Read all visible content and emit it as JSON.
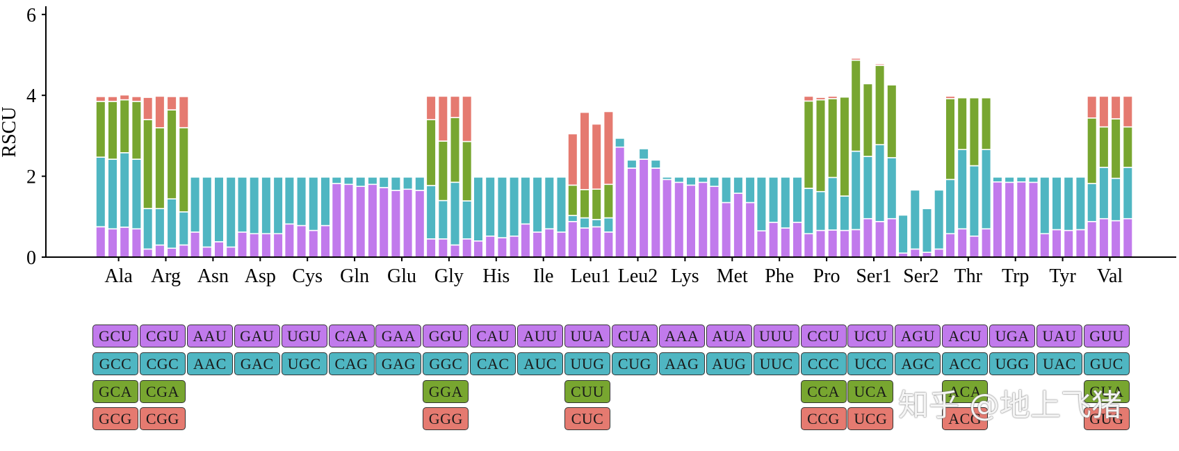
{
  "chart_data": {
    "type": "stacked-bar",
    "ylabel": "RSCU",
    "ylim": [
      0,
      6
    ],
    "yticks": [
      0,
      2,
      4,
      6
    ],
    "colors": [
      "#c17aec",
      "#4fb6c2",
      "#78a630",
      "#e57a70"
    ],
    "amino_acids": [
      "Ala",
      "Arg",
      "Asn",
      "Asp",
      "Cys",
      "Gln",
      "Glu",
      "Gly",
      "His",
      "Ile",
      "Leu1",
      "Leu2",
      "Lys",
      "Met",
      "Phe",
      "Pro",
      "Ser1",
      "Ser2",
      "Thr",
      "Trp",
      "Tyr",
      "Val"
    ],
    "bars": [
      [
        [
          0.75,
          1.72,
          1.38,
          0.12
        ],
        [
          0.7,
          1.72,
          1.43,
          0.12
        ],
        [
          0.74,
          1.84,
          1.31,
          0.12
        ],
        [
          0.7,
          1.72,
          1.43,
          0.12
        ]
      ],
      [
        [
          0.2,
          1.0,
          2.2,
          0.55
        ],
        [
          0.3,
          0.9,
          2.0,
          0.78
        ],
        [
          0.22,
          1.22,
          2.2,
          0.33
        ],
        [
          0.3,
          0.82,
          2.08,
          0.77
        ]
      ],
      [
        [
          0.62,
          1.36
        ],
        [
          0.25,
          1.73
        ],
        [
          0.38,
          1.6
        ],
        [
          0.25,
          1.73
        ]
      ],
      [
        [
          0.62,
          1.36
        ],
        [
          0.58,
          1.4
        ],
        [
          0.58,
          1.4
        ],
        [
          0.58,
          1.4
        ]
      ],
      [
        [
          0.82,
          1.16
        ],
        [
          0.78,
          1.2
        ],
        [
          0.66,
          1.32
        ],
        [
          0.78,
          1.2
        ]
      ],
      [
        [
          1.82,
          0.16
        ],
        [
          1.8,
          0.18
        ],
        [
          1.75,
          0.23
        ],
        [
          1.8,
          0.18
        ]
      ],
      [
        [
          1.72,
          0.26
        ],
        [
          1.65,
          0.33
        ],
        [
          1.68,
          0.3
        ],
        [
          1.65,
          0.33
        ]
      ],
      [
        [
          0.45,
          1.32,
          1.63,
          0.58
        ],
        [
          0.45,
          0.95,
          1.47,
          1.11
        ],
        [
          0.3,
          1.55,
          1.6,
          0.53
        ],
        [
          0.45,
          0.94,
          1.47,
          1.12
        ]
      ],
      [
        [
          0.4,
          1.58
        ],
        [
          0.52,
          1.46
        ],
        [
          0.48,
          1.5
        ],
        [
          0.52,
          1.46
        ]
      ],
      [
        [
          0.82,
          1.16
        ],
        [
          0.62,
          1.36
        ],
        [
          0.7,
          1.28
        ],
        [
          0.62,
          1.36
        ]
      ],
      [
        [
          0.88,
          0.15,
          0.75,
          1.27
        ],
        [
          0.72,
          0.25,
          0.7,
          1.91
        ],
        [
          0.75,
          0.18,
          0.75,
          1.61
        ],
        [
          0.62,
          0.35,
          0.83,
          1.8
        ]
      ],
      [
        [
          2.72,
          0.22
        ],
        [
          2.2,
          0.2
        ],
        [
          2.42,
          0.26
        ],
        [
          2.2,
          0.2
        ]
      ],
      [
        [
          1.92,
          0.06
        ],
        [
          1.85,
          0.13
        ],
        [
          1.78,
          0.2
        ],
        [
          1.85,
          0.13
        ]
      ],
      [
        [
          1.75,
          0.23
        ],
        [
          1.35,
          0.63
        ],
        [
          1.58,
          0.4
        ],
        [
          1.35,
          0.63
        ]
      ],
      [
        [
          0.65,
          1.33
        ],
        [
          0.86,
          1.12
        ],
        [
          0.72,
          1.26
        ],
        [
          0.86,
          1.12
        ]
      ],
      [
        [
          0.58,
          1.12,
          2.16,
          0.12
        ],
        [
          0.66,
          0.96,
          2.27,
          0.06
        ],
        [
          0.67,
          1.3,
          1.95,
          0.06
        ],
        [
          0.66,
          0.85,
          2.45,
          0.02
        ]
      ],
      [
        [
          0.68,
          1.94,
          2.25,
          0.05
        ],
        [
          0.95,
          1.54,
          1.8,
          0.02
        ],
        [
          0.88,
          1.9,
          1.96,
          0.04
        ],
        [
          0.95,
          1.51,
          1.8,
          0.02
        ]
      ],
      [
        [
          0.1,
          0.94
        ],
        [
          0.2,
          1.46
        ],
        [
          0.12,
          1.08
        ],
        [
          0.2,
          1.46
        ]
      ],
      [
        [
          0.58,
          1.34,
          2.0,
          0.06
        ],
        [
          0.7,
          1.96,
          1.28,
          0.02
        ],
        [
          0.52,
          1.74,
          1.68,
          0.02
        ],
        [
          0.7,
          1.96,
          1.28,
          0.02
        ]
      ],
      [
        [
          1.86,
          0.12
        ],
        [
          1.85,
          0.13
        ],
        [
          1.86,
          0.12
        ],
        [
          1.85,
          0.13
        ]
      ],
      [
        [
          0.58,
          1.4
        ],
        [
          0.68,
          1.3
        ],
        [
          0.66,
          1.32
        ],
        [
          0.68,
          1.3
        ]
      ],
      [
        [
          0.88,
          0.94,
          1.62,
          0.54
        ],
        [
          0.95,
          1.27,
          1.0,
          0.76
        ],
        [
          0.9,
          1.05,
          1.47,
          0.56
        ],
        [
          0.95,
          1.27,
          1.0,
          0.76
        ]
      ]
    ],
    "codon_rows": [
      [
        "GCU",
        "CGU",
        "AAU",
        "GAU",
        "UGU",
        "CAA",
        "GAA",
        "GGU",
        "CAU",
        "AUU",
        "UUA",
        "CUA",
        "AAA",
        "AUA",
        "UUU",
        "CCU",
        "UCU",
        "AGU",
        "ACU",
        "UGA",
        "UAU",
        "GUU"
      ],
      [
        "GCC",
        "CGC",
        "AAC",
        "GAC",
        "UGC",
        "CAG",
        "GAG",
        "GGC",
        "CAC",
        "AUC",
        "UUG",
        "CUG",
        "AAG",
        "AUG",
        "UUC",
        "CCC",
        "UCC",
        "AGC",
        "ACC",
        "UGG",
        "UAC",
        "GUC"
      ],
      [
        "GCA",
        "CGA",
        "",
        "",
        "",
        "",
        "",
        "GGA",
        "",
        "",
        "CUU",
        "",
        "",
        "",
        "",
        "CCA",
        "UCA",
        "",
        "ACA",
        "",
        "",
        "GUA"
      ],
      [
        "GCG",
        "CGG",
        "",
        "",
        "",
        "",
        "",
        "GGG",
        "",
        "",
        "CUC",
        "",
        "",
        "",
        "",
        "CCG",
        "UCG",
        "",
        "ACG",
        "",
        "",
        "GUG"
      ]
    ]
  },
  "watermark": "知乎 @地上飞猪"
}
